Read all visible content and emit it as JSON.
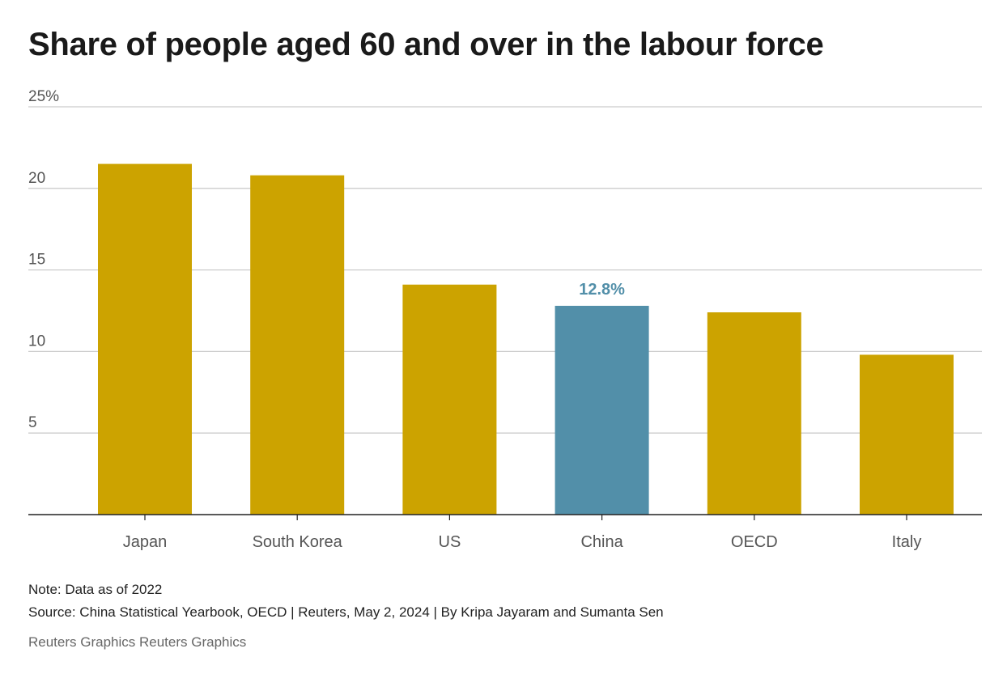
{
  "colors": {
    "default_bar": "#cca300",
    "highlight_bar": "#528fa9",
    "grid": "#cccccc",
    "axis": "#222222"
  },
  "chart_data": {
    "type": "bar",
    "title": "Share of people aged 60 and over in the labour force",
    "categories": [
      "Japan",
      "South Korea",
      "US",
      "China",
      "OECD",
      "Italy"
    ],
    "values": [
      21.5,
      20.8,
      14.1,
      12.8,
      12.4,
      9.8
    ],
    "highlight": "China",
    "annotation": {
      "category": "China",
      "text": "12.8%"
    },
    "ylim": [
      0,
      25
    ],
    "yticks": [
      5,
      10,
      15,
      20,
      25
    ],
    "ytick_labels": [
      "5",
      "10",
      "15",
      "20",
      "25%"
    ],
    "grid": true,
    "xlabel": "",
    "ylabel": ""
  },
  "footer": {
    "note": "Note: Data as of 2022",
    "source": "Source: China Statistical Yearbook, OECD | Reuters, May 2, 2024 | By Kripa Jayaram and Sumanta Sen",
    "credit": "Reuters Graphics Reuters Graphics"
  }
}
